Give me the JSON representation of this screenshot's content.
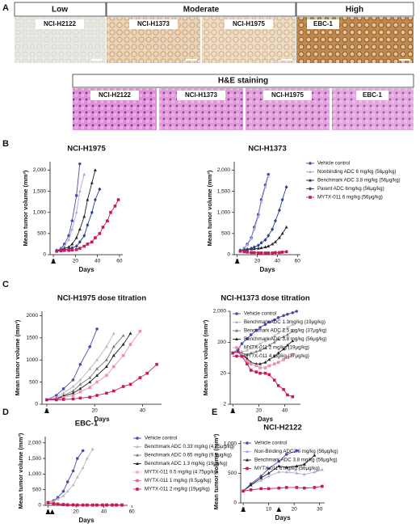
{
  "panel_labels": [
    "A",
    "B",
    "C",
    "D",
    "E"
  ],
  "figure_a": {
    "headers": [
      "Low",
      "Moderate",
      "High"
    ],
    "ihc": [
      "NCI-H2122",
      "NCI-H1373",
      "NCI-H1975",
      "EBC-1"
    ],
    "he_title": "H&E staining",
    "he": [
      "NCI-H2122",
      "NCI-H1373",
      "NCI-H1975",
      "EBC-1"
    ]
  },
  "chart_data": [
    {
      "type": "line",
      "title": "NCI-H1975",
      "xlabel": "Days",
      "ylabel": "Mean tumor volume (mm³)",
      "xlim": [
        -3,
        63
      ],
      "xticks": [
        0,
        20,
        40,
        60
      ],
      "ylim": [
        0,
        2200
      ],
      "yticks": [
        0,
        500,
        {
          "value": 1000,
          "label": "1,000"
        },
        {
          "value": 1500,
          "label": "1,500"
        },
        {
          "value": 2000,
          "label": "2,000"
        }
      ],
      "dose_days": [
        0
      ],
      "x": [
        3,
        7,
        10,
        14,
        17,
        21,
        24,
        28,
        31,
        35,
        38,
        42,
        45,
        49,
        52,
        56,
        59
      ],
      "series": [
        {
          "color": "#4a4ab0",
          "marker": "circle",
          "values": [
            100,
            150,
            250,
            450,
            800,
            1400,
            2150,
            null,
            null,
            null,
            null,
            null,
            null,
            null,
            null,
            null,
            null
          ]
        },
        {
          "color": "#a7addb",
          "marker": "triangle",
          "values": [
            100,
            140,
            200,
            350,
            600,
            1000,
            1500,
            1900,
            null,
            null,
            null,
            null,
            null,
            null,
            null,
            null,
            null
          ]
        },
        {
          "color": "#222222",
          "marker": "triangle",
          "values": [
            100,
            120,
            150,
            180,
            250,
            400,
            600,
            900,
            1300,
            1700,
            2000,
            null,
            null,
            null,
            null,
            null,
            null
          ]
        },
        {
          "color": "#2b3f8f",
          "marker": "diamond",
          "values": [
            100,
            110,
            120,
            130,
            160,
            200,
            300,
            450,
            700,
            1000,
            1300,
            1550,
            null,
            null,
            null,
            null,
            null
          ]
        },
        {
          "color": "#c8175d",
          "marker": "square",
          "values": [
            80,
            90,
            100,
            100,
            110,
            120,
            150,
            200,
            250,
            300,
            400,
            500,
            650,
            800,
            1000,
            1150,
            1300
          ]
        }
      ]
    },
    {
      "type": "line",
      "title": "NCI-H1373",
      "xlabel": "Days",
      "ylabel": "Mean tumor volume (mm³)",
      "xlim": [
        -3,
        63
      ],
      "xticks": [
        0,
        20,
        40,
        60
      ],
      "ylim": [
        0,
        2200
      ],
      "yticks": [
        0,
        500,
        {
          "value": 1000,
          "label": "1,000"
        },
        {
          "value": 1500,
          "label": "1,500"
        },
        {
          "value": 2000,
          "label": "2,000"
        }
      ],
      "dose_days": [
        0
      ],
      "legend": "right",
      "x": [
        3,
        7,
        10,
        14,
        17,
        21,
        24,
        28,
        31,
        35,
        38,
        42,
        45,
        49,
        52
      ],
      "series": [
        {
          "name": "Vehicle control",
          "color": "#4a4ab0",
          "marker": "circle",
          "values": [
            100,
            150,
            250,
            400,
            650,
            950,
            1300,
            1650,
            1900,
            null,
            null,
            null,
            null,
            null,
            null
          ]
        },
        {
          "name": "Nonbinding ADC 6 mg/kg (56μg/kg)",
          "color": "#a7addb",
          "marker": "triangle",
          "values": [
            100,
            150,
            230,
            380,
            600,
            900,
            1250,
            1600,
            1850,
            null,
            null,
            null,
            null,
            null,
            null
          ]
        },
        {
          "name": "Benchmark ADC 3.8 mg/kg (56μg/kg)",
          "color": "#222222",
          "marker": "triangle",
          "values": [
            100,
            110,
            120,
            130,
            140,
            150,
            160,
            180,
            200,
            250,
            300,
            400,
            500,
            650,
            null
          ]
        },
        {
          "name": "Parent ADC 6mg/kg (56μg/kg)",
          "color": "#2b3f8f",
          "marker": "diamond",
          "values": [
            100,
            110,
            130,
            150,
            180,
            220,
            280,
            350,
            450,
            600,
            800,
            1050,
            1300,
            1600,
            null
          ]
        },
        {
          "name": "MYTX-011 6 mg/kg (56μg/kg)",
          "color": "#c8175d",
          "marker": "square",
          "values": [
            80,
            70,
            60,
            50,
            50,
            40,
            40,
            40,
            40,
            40,
            50,
            50,
            60,
            70,
            null
          ]
        }
      ]
    },
    {
      "type": "line",
      "title": "NCI-H1975 dose titration",
      "xlabel": "Days",
      "ylabel": "Mean tumor volume (mm³)",
      "xlim": [
        -2,
        48
      ],
      "xticks": [
        0,
        20,
        40
      ],
      "ylim": [
        0,
        2100
      ],
      "yticks": [
        0,
        500,
        1000,
        1500,
        2000
      ],
      "dose_days": [
        0
      ],
      "x": [
        0,
        4,
        7,
        11,
        14,
        18,
        21,
        25,
        28,
        32,
        35,
        39,
        42,
        46
      ],
      "series": [
        {
          "color": "#4a4ab0",
          "marker": "circle",
          "values": [
            100,
            200,
            350,
            550,
            900,
            1300,
            1700,
            null,
            null,
            null,
            null,
            null,
            null,
            null
          ]
        },
        {
          "color": "#b8b8b8",
          "marker": "triangle",
          "values": [
            100,
            150,
            250,
            400,
            550,
            800,
            1000,
            1300,
            1600,
            null,
            null,
            null,
            null,
            null
          ]
        },
        {
          "color": "#7a7a7a",
          "marker": "triangle",
          "values": [
            100,
            130,
            200,
            300,
            450,
            600,
            800,
            1000,
            1300,
            1550,
            null,
            null,
            null,
            null
          ]
        },
        {
          "color": "#222222",
          "marker": "triangle",
          "values": [
            100,
            120,
            180,
            250,
            350,
            500,
            650,
            850,
            1100,
            1350,
            1600,
            null,
            null,
            null
          ]
        },
        {
          "color": "#ec8fb0",
          "marker": "square",
          "values": [
            100,
            110,
            150,
            200,
            280,
            380,
            500,
            650,
            850,
            1100,
            1350,
            1650,
            null,
            null
          ]
        },
        {
          "color": "#c8175d",
          "marker": "square",
          "values": [
            100,
            100,
            110,
            120,
            140,
            160,
            200,
            250,
            300,
            400,
            450,
            600,
            700,
            900
          ]
        }
      ]
    },
    {
      "type": "line",
      "title": "NCI-H1373 dose titration",
      "xlabel": "Days",
      "ylabel": "Mean tumor volume (mm³)",
      "log_y": true,
      "xlim": [
        -2,
        52
      ],
      "xticks": [
        0,
        20,
        40
      ],
      "ylim": [
        2,
        2000
      ],
      "yticks": [
        2,
        20,
        200,
        {
          "value": 2000,
          "label": "2,000"
        }
      ],
      "dose_days": [
        0
      ],
      "legend": "upper left",
      "x": [
        0,
        4,
        7,
        11,
        14,
        18,
        21,
        25,
        28,
        32,
        35,
        39,
        42,
        46,
        49
      ],
      "series": [
        {
          "name": "Vehicle control",
          "color": "#4a4ab0",
          "marker": "circle",
          "values": [
            90,
            120,
            180,
            260,
            350,
            480,
            600,
            750,
            900,
            1050,
            1250,
            1450,
            1600,
            1800,
            2000
          ]
        },
        {
          "name": "Benchmark ADC 1.3mg/kg (19μg/kg)",
          "color": "#b8b8b8",
          "marker": "triangle",
          "values": [
            90,
            100,
            100,
            110,
            130,
            150,
            180,
            220,
            260,
            320,
            400,
            500,
            600,
            750,
            null
          ]
        },
        {
          "name": "Benchmark ADC 2.5 mg/kg (37μg/kg)",
          "color": "#7a7a7a",
          "marker": "triangle",
          "values": [
            90,
            100,
            90,
            80,
            90,
            100,
            110,
            130,
            160,
            200,
            250,
            300,
            350,
            450,
            null
          ]
        },
        {
          "name": "Benchmark ADC 3.8 mg/kg (56μg/kg)",
          "color": "#222222",
          "marker": "triangle",
          "values": [
            90,
            100,
            80,
            60,
            45,
            40,
            40,
            45,
            55,
            70,
            90,
            120,
            160,
            220,
            null
          ]
        },
        {
          "name": "MYTX-011 2 mg/kg (19μg/kg)",
          "color": "#ec8fb0",
          "marker": "square",
          "values": [
            90,
            100,
            80,
            50,
            40,
            35,
            30,
            30,
            35,
            40,
            45,
            55,
            65,
            80,
            null
          ]
        },
        {
          "name": "MYTX-011 4 mg/kg (37μg/kg)",
          "color": "#c8175d",
          "marker": "square",
          "values": [
            90,
            100,
            70,
            40,
            25,
            22,
            20,
            20,
            18,
            12,
            8,
            6,
            4,
            3.5,
            null
          ]
        }
      ]
    },
    {
      "type": "line",
      "title": "EBC-1",
      "xlabel": "Days",
      "ylabel": "Mean tumor volume (mm³)",
      "xlim": [
        -2,
        57
      ],
      "xticks": [
        0,
        20,
        40,
        60
      ],
      "ylim": [
        0,
        2200
      ],
      "yticks": [
        0,
        500,
        {
          "value": 1000,
          "label": "1,000"
        },
        {
          "value": 1500,
          "label": "1,500"
        },
        {
          "value": 2000,
          "label": "2,000"
        }
      ],
      "dose_days": [
        0,
        3
      ],
      "legend": "right",
      "x": [
        0,
        4,
        7,
        11,
        14,
        18,
        21,
        25,
        28,
        32,
        35,
        39,
        42,
        46,
        49,
        53
      ],
      "series": [
        {
          "name": "Vehicle control",
          "color": "#4a4ab0",
          "marker": "circle",
          "values": [
            100,
            150,
            250,
            450,
            750,
            1100,
            1500,
            1750,
            null,
            null,
            null,
            null,
            null,
            null,
            null,
            null
          ]
        },
        {
          "name": "Benchmark ADC 0.33 mg/kg (4.75μg/kg)",
          "color": "#b8b8b8",
          "marker": "triangle",
          "values": [
            100,
            130,
            200,
            300,
            450,
            650,
            900,
            1200,
            1500,
            1800,
            null,
            null,
            null,
            null,
            null,
            null
          ]
        },
        {
          "name": "Benchmark ADC 0.65 mg/kg (9.5μg/kg)",
          "color": "#7a7a7a",
          "marker": "triangle",
          "values": [
            80,
            70,
            50,
            40,
            30,
            30,
            20,
            20,
            20,
            20,
            20,
            20,
            20,
            20,
            20,
            20
          ]
        },
        {
          "name": "Benchmark ADC 1.3 mg/kg (19μg/kg)",
          "color": "#222222",
          "marker": "triangle",
          "values": [
            80,
            60,
            40,
            30,
            20,
            10,
            10,
            10,
            10,
            10,
            10,
            10,
            10,
            10,
            10,
            10
          ]
        },
        {
          "name": "MYTX-011 0.5 mg/kg (4.75μg/kg)",
          "color": "#f2b3c6",
          "marker": "square",
          "values": [
            80,
            60,
            50,
            40,
            30,
            20,
            20,
            20,
            20,
            20,
            20,
            20,
            30,
            30,
            30,
            30
          ]
        },
        {
          "name": "MYTX-011 1 mg/kg (9.5μg/kg)",
          "color": "#e06a93",
          "marker": "square",
          "values": [
            80,
            60,
            40,
            30,
            20,
            15,
            10,
            10,
            10,
            10,
            10,
            10,
            10,
            10,
            10,
            10
          ]
        },
        {
          "name": "MYTX-011 2 mg/kg (19μg/kg)",
          "color": "#c8175d",
          "marker": "square",
          "values": [
            80,
            50,
            30,
            20,
            10,
            10,
            5,
            5,
            5,
            5,
            5,
            5,
            5,
            5,
            5,
            5
          ]
        }
      ]
    },
    {
      "type": "line",
      "title": "NCI-H2122",
      "xlabel": "Days",
      "ylabel": "Mean tumor volume (mm³)",
      "xlim": [
        -1,
        32
      ],
      "xticks": [
        0,
        10,
        20,
        30
      ],
      "ylim": [
        0,
        1050
      ],
      "yticks": [
        0,
        500,
        {
          "value": 1000,
          "label": "1,000"
        }
      ],
      "dose_days": [
        0,
        14
      ],
      "legend": "upper left",
      "x": [
        0,
        3,
        7,
        10,
        14,
        17,
        21,
        24,
        28,
        31
      ],
      "series": [
        {
          "name": "Vehicle control",
          "color": "#4a4ab0",
          "marker": "circle",
          "values": [
            200,
            320,
            450,
            580,
            700,
            820,
            880,
            null,
            null,
            null
          ]
        },
        {
          "name": "Non-Binding ADC2 6 mg/kg (56μg/kg)",
          "color": "#a7addb",
          "marker": "triangle",
          "values": [
            200,
            300,
            380,
            450,
            520,
            520,
            500,
            480,
            520,
            560
          ]
        },
        {
          "name": "Benchmark ADC 3.8 mg/kg (56μg/kg)",
          "color": "#222222",
          "marker": "triangle",
          "values": [
            200,
            300,
            420,
            500,
            620,
            600,
            620,
            650,
            800,
            null
          ]
        },
        {
          "name": "MYTX-011 6 mg/kg (56μg/kg)",
          "color": "#c8175d",
          "marker": "square",
          "values": [
            200,
            220,
            240,
            240,
            250,
            260,
            260,
            250,
            260,
            280
          ]
        }
      ]
    }
  ]
}
